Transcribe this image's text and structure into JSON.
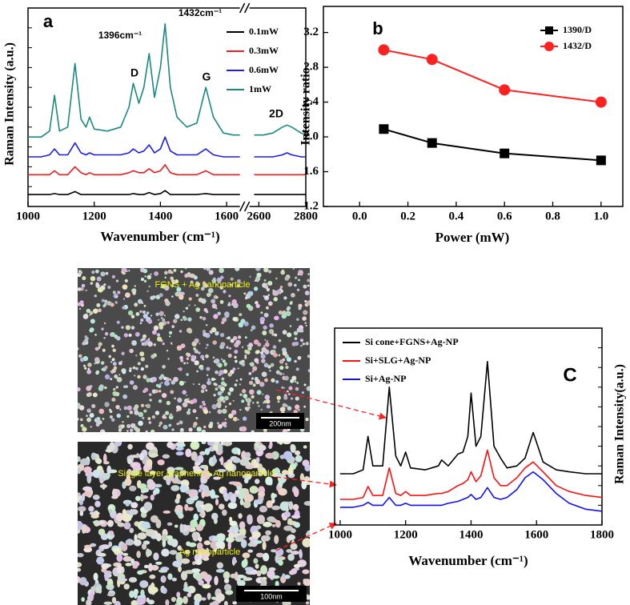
{
  "chart_data": [
    {
      "type": "line",
      "annotations": [
        "a",
        "1396cm⁻¹",
        "1432cm⁻¹",
        "D",
        "G",
        "2D"
      ],
      "x_label": "Wavenumber (cm⁻¹)",
      "y_label": "Raman Intensity (a.u.)",
      "x": [
        1000,
        1040,
        1065,
        1080,
        1095,
        1120,
        1142,
        1160,
        1175,
        1186,
        1200,
        1240,
        1280,
        1305,
        1318,
        1335,
        1350,
        1366,
        1382,
        1400,
        1414,
        1430,
        1450,
        1480,
        1510,
        1537,
        1560,
        1590,
        1620,
        1640,
        2580,
        2620,
        2660,
        2700,
        2720,
        2740,
        2780,
        2800
      ],
      "series": [
        {
          "name": "0.1mW",
          "color": "#000000",
          "values": [
            6,
            6,
            6,
            6.5,
            6,
            6,
            7.5,
            6,
            6,
            6,
            6,
            6,
            6,
            6,
            6.5,
            6,
            6,
            7,
            6,
            6.5,
            8,
            6,
            6,
            6,
            6,
            6.5,
            6,
            6,
            6,
            6,
            6,
            6,
            6,
            6,
            6,
            6,
            6,
            6
          ]
        },
        {
          "name": "0.3mW",
          "color": "#ee1c1c",
          "values": [
            16,
            16,
            16,
            18,
            16,
            16,
            20,
            17,
            16,
            17,
            16,
            16,
            16,
            17,
            18,
            17,
            17,
            19,
            17,
            18,
            21,
            17,
            16,
            16,
            16,
            18,
            16,
            16,
            16,
            16,
            16,
            16,
            16,
            16,
            16,
            16,
            16,
            16
          ]
        },
        {
          "name": "0.6mW",
          "color": "#1c1cf0",
          "values": [
            25,
            25,
            26,
            29,
            26,
            26,
            32,
            27,
            26,
            27,
            26,
            26,
            26,
            27,
            29,
            27,
            28,
            31,
            27,
            29,
            35,
            28,
            26,
            26,
            26,
            29,
            26,
            25,
            25,
            25,
            25,
            25,
            25,
            26,
            27,
            26,
            25,
            25
          ]
        },
        {
          "name": "1mW",
          "color": "#1a8a80",
          "values": [
            35,
            35,
            38,
            56,
            38,
            40,
            72,
            44,
            40,
            45,
            39,
            38,
            40,
            50,
            62,
            52,
            60,
            77,
            55,
            70,
            92,
            60,
            45,
            40,
            42,
            60,
            45,
            37,
            36,
            36,
            36,
            36,
            37,
            40,
            41,
            40,
            37,
            36
          ]
        }
      ],
      "xlim": [
        1000,
        2800
      ],
      "xbreak": [
        1640,
        2560
      ],
      "xticks": [
        1000,
        1200,
        1400,
        1600,
        2600,
        2800
      ],
      "ylim": [
        0,
        100
      ]
    },
    {
      "type": "line",
      "annotations": [
        "b"
      ],
      "x_label": "Power (mW)",
      "y_label": "Intensity ratio",
      "x": [
        0.1,
        0.3,
        0.6,
        1.0
      ],
      "series": [
        {
          "name": "1390/D",
          "color": "#000000",
          "marker": "square",
          "values": [
            2.09,
            1.93,
            1.81,
            1.73
          ]
        },
        {
          "name": "1432/D",
          "color": "#ff2020",
          "marker": "circle",
          "values": [
            3.0,
            2.89,
            2.54,
            2.4
          ]
        }
      ],
      "xlim": [
        -0.15,
        1.09
      ],
      "xticks": [
        {
          "value": 0,
          "label": "0.0"
        },
        0.2,
        0.4,
        0.6,
        0.8,
        {
          "value": 1,
          "label": "1.0"
        }
      ],
      "ylim": [
        1.2,
        3.5
      ],
      "yticks": [
        1.2,
        1.6,
        {
          "value": 2,
          "label": "2.0"
        },
        2.4,
        2.8,
        3.2
      ]
    },
    {
      "type": "line",
      "annotations": [
        "C"
      ],
      "x_label": "Wavenumber (cm⁻¹)",
      "y_label": "Raman Intensity(a.u.)",
      "x": [
        1000,
        1040,
        1070,
        1085,
        1100,
        1130,
        1150,
        1170,
        1185,
        1200,
        1215,
        1260,
        1300,
        1310,
        1330,
        1360,
        1375,
        1390,
        1400,
        1415,
        1430,
        1450,
        1470,
        1490,
        1510,
        1540,
        1565,
        1590,
        1620,
        1660,
        1700,
        1750,
        1800
      ],
      "series": [
        {
          "name": "Si cone+FGNS+Ag-NP",
          "color": "#000000",
          "values": [
            26,
            26,
            28,
            45,
            30,
            30,
            70,
            35,
            30,
            37,
            29,
            28,
            30,
            33,
            30,
            36,
            37,
            45,
            67,
            40,
            45,
            83,
            40,
            34,
            29,
            30,
            34,
            47,
            32,
            28,
            27,
            26,
            26
          ]
        },
        {
          "name": "Si+SLG+Ag-NP",
          "color": "#ff1010",
          "values": [
            13,
            13,
            14,
            19.5,
            15,
            15,
            29,
            16,
            15,
            17,
            15,
            15,
            16,
            16,
            17,
            20,
            21,
            23,
            27,
            22,
            25,
            38,
            24,
            20,
            20,
            24,
            29,
            32,
            27,
            20,
            17,
            15,
            14
          ]
        },
        {
          "name": "Si+Ag-NP",
          "color": "#1010ff",
          "values": [
            9,
            9,
            10,
            11.5,
            10,
            10,
            14,
            10,
            10,
            11,
            10,
            10,
            10,
            10,
            11,
            12,
            13,
            14,
            15.5,
            13,
            14,
            19,
            14,
            13,
            14,
            18,
            24,
            27,
            23,
            16,
            11,
            8,
            7
          ]
        }
      ],
      "xlim": [
        983,
        1800
      ],
      "xticks": [
        1000,
        1200,
        1400,
        1600,
        1800
      ],
      "ylim": [
        0,
        100
      ]
    }
  ],
  "images": [
    {
      "captions": [
        "FGNS + Ag nanoparticle"
      ],
      "scale_bar": "200nm"
    },
    {
      "captions": [
        "Single layer graphene + Ag nanoparticle",
        "Ag nanoparticle"
      ],
      "scale_bar": "100nm"
    }
  ]
}
